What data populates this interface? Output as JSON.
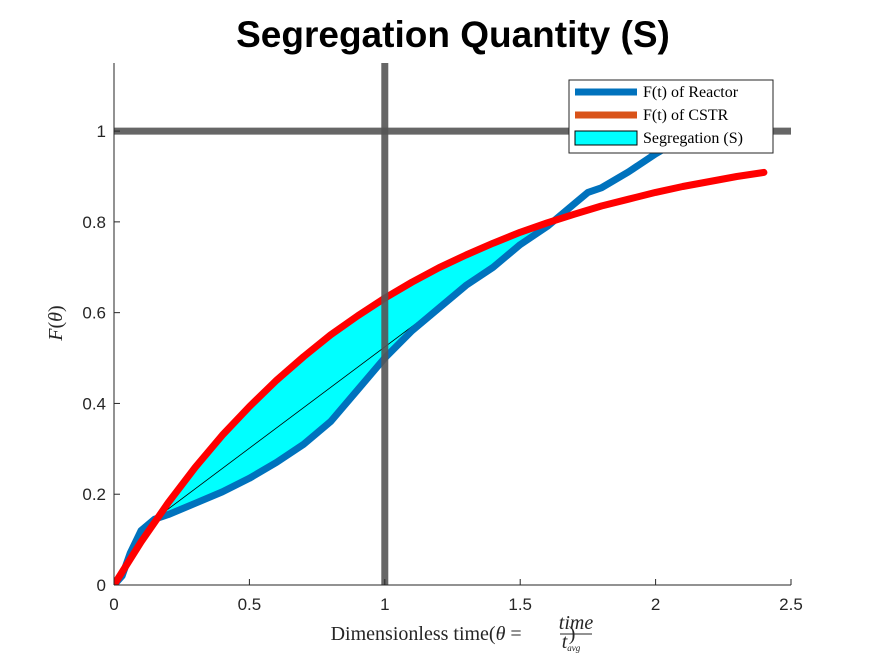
{
  "chart_data": {
    "type": "line",
    "title": "Segregation Quantity (S)",
    "xlabel": {
      "prefix": "Dimensionless time(",
      "symbol": "θ",
      "equals": " = ",
      "numerator": "time",
      "denominator_base": "t",
      "denominator_sub": "avg",
      "suffix": ")"
    },
    "ylabel": {
      "base": "F",
      "open": "(",
      "symbol": "θ",
      "close": ")"
    },
    "xlim": [
      0,
      2.5
    ],
    "ylim": [
      0,
      1.15
    ],
    "xticks": [
      0,
      0.5,
      1,
      1.5,
      2,
      2.5
    ],
    "xtick_labels": [
      "0",
      "0.5",
      "1",
      "1.5",
      "2",
      "2.5"
    ],
    "yticks": [
      0,
      0.2,
      0.4,
      0.6,
      0.8,
      1
    ],
    "ytick_labels": [
      "0",
      "0.2",
      "0.4",
      "0.6",
      "0.8",
      "1"
    ],
    "legend_position": "top-right",
    "series": [
      {
        "name": "F(t) of Reactor",
        "color": "#0072BD",
        "x": [
          0,
          0.03,
          0.06,
          0.1,
          0.15,
          0.2,
          0.3,
          0.4,
          0.5,
          0.6,
          0.7,
          0.8,
          0.9,
          1.0,
          1.1,
          1.2,
          1.3,
          1.4,
          1.5,
          1.6,
          1.7,
          1.75,
          1.8,
          1.9,
          2.0,
          2.1,
          2.2,
          2.25
        ],
        "y": [
          0,
          0.02,
          0.07,
          0.12,
          0.145,
          0.155,
          0.18,
          0.205,
          0.235,
          0.27,
          0.31,
          0.36,
          0.43,
          0.5,
          0.56,
          0.61,
          0.66,
          0.7,
          0.75,
          0.79,
          0.84,
          0.865,
          0.875,
          0.91,
          0.95,
          0.985,
          1.02,
          1.04
        ]
      },
      {
        "name": "F(t) of CSTR",
        "color": "#FF0000",
        "legend_color": "#D95319",
        "x": [
          0,
          0.1,
          0.2,
          0.3,
          0.4,
          0.5,
          0.6,
          0.7,
          0.8,
          0.9,
          1.0,
          1.1,
          1.2,
          1.3,
          1.4,
          1.5,
          1.6,
          1.7,
          1.8,
          1.9,
          2.0,
          2.1,
          2.2,
          2.3,
          2.4
        ],
        "y": [
          0,
          0.095,
          0.181,
          0.259,
          0.33,
          0.393,
          0.451,
          0.503,
          0.551,
          0.593,
          0.632,
          0.667,
          0.699,
          0.727,
          0.753,
          0.777,
          0.798,
          0.817,
          0.835,
          0.85,
          0.865,
          0.878,
          0.889,
          0.9,
          0.909
        ]
      }
    ],
    "segregation": {
      "name": "Segregation (S)",
      "color": "#00FFFF",
      "x_range": [
        0.15,
        1.65
      ]
    },
    "reference_lines": [
      {
        "orientation": "vertical",
        "value": 1,
        "color": "#555555"
      },
      {
        "orientation": "horizontal",
        "value": 1,
        "color": "#555555"
      }
    ],
    "grid": false
  }
}
